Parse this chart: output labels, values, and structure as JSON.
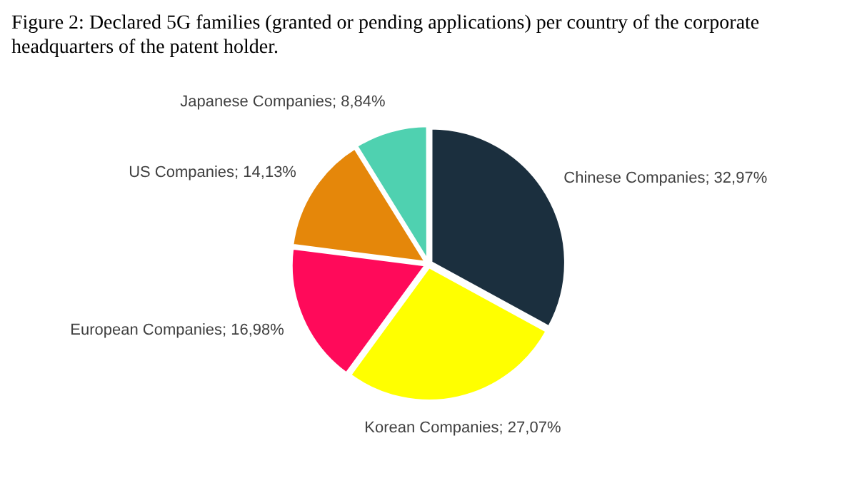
{
  "chart_data": {
    "type": "pie",
    "title": "Figure 2: Declared 5G families (granted or pending applications) per country of the corporate headquarters of the patent holder.",
    "categories": [
      "Chinese Companies",
      "Korean Companies",
      "European Companies",
      "US Companies",
      "Japanese Companies"
    ],
    "values": [
      32.97,
      27.07,
      16.98,
      14.13,
      8.84
    ],
    "value_labels": [
      "32,97%",
      "27,07%",
      "16,98%",
      "14,13%",
      "8,84%"
    ],
    "colors": [
      "#1b2f3e",
      "#ffff00",
      "#ff0a5a",
      "#e5870a",
      "#4fd1b0"
    ],
    "legend": false
  }
}
